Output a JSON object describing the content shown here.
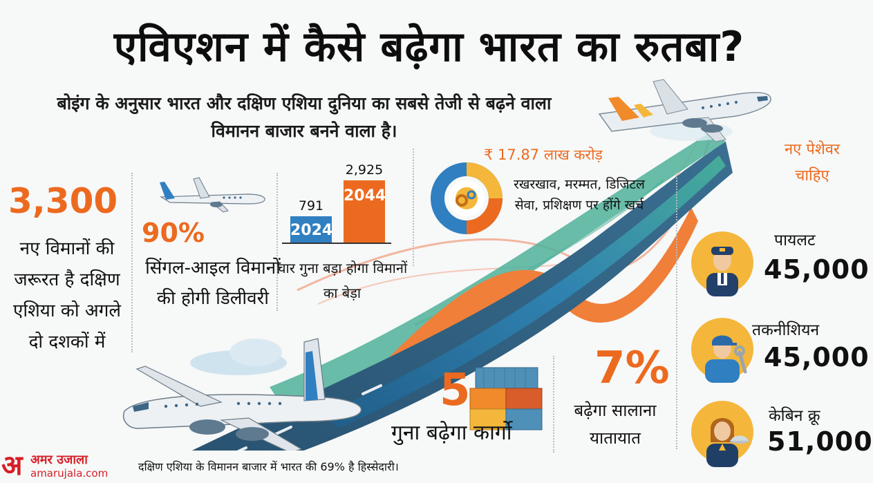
{
  "headline": "एविएशन में कैसे बढ़ेगा भारत का रुतबा?",
  "subhead": "बोइंग के अनुसार भारत और दक्षिण एशिया दुनिया का सबसे तेजी से बढ़ने वाला विमानन बाजार बनने वाला है।",
  "new_aircraft": {
    "value": "3,300",
    "description": "नए विमानों की जरूरत है दक्षिण एशिया को अगले दो दशकों में"
  },
  "single_aisle": {
    "value": "90%",
    "fraction": 0.9,
    "description": "सिंगल-आइल विमानों की होगी डिलीवरी"
  },
  "fleet": {
    "bars": [
      {
        "year": "2024",
        "value": "791",
        "count": 791
      },
      {
        "year": "2044",
        "value": "2,925",
        "count": 2925
      }
    ],
    "description": "चार गुना बड़ा होगा विमानों का बेड़ा"
  },
  "mro": {
    "value": "₹ 17.87 लाख करोड़",
    "description": "रखरखाव, मरम्मत, डिजिटल सेवा, प्रशिक्षण पर होंगे खर्च"
  },
  "jobs": {
    "title": "नए पेशेवर चाहिए",
    "roles": [
      {
        "label": "पायलट",
        "count": "45,000",
        "icon": "pilot-icon"
      },
      {
        "label": "तकनीशियन",
        "count": "45,000",
        "icon": "technician-icon"
      },
      {
        "label": "केबिन क्रू",
        "count": "51,000",
        "icon": "cabin-crew-icon"
      }
    ]
  },
  "cargo": {
    "value": "5",
    "description": "गुना बढ़ेगा कार्गो"
  },
  "traffic": {
    "value": "7%",
    "description": "बढ़ेगा सालाना यातायात"
  },
  "footer": {
    "logo_name": "अमर उजाला",
    "logo_url": "amarujala.com",
    "text": "दक्षिण एशिया के विमानन बाजार में भारत की 69% है हिस्सेदारी।"
  },
  "colors": {
    "accent_orange": "#ec6a1f",
    "bar_blue": "#2f7fc1",
    "bar_orange": "#ec6a1f",
    "teal": "#3aa58f",
    "avatar_yellow": "#f4b73b",
    "brand_red": "#d61f26"
  }
}
